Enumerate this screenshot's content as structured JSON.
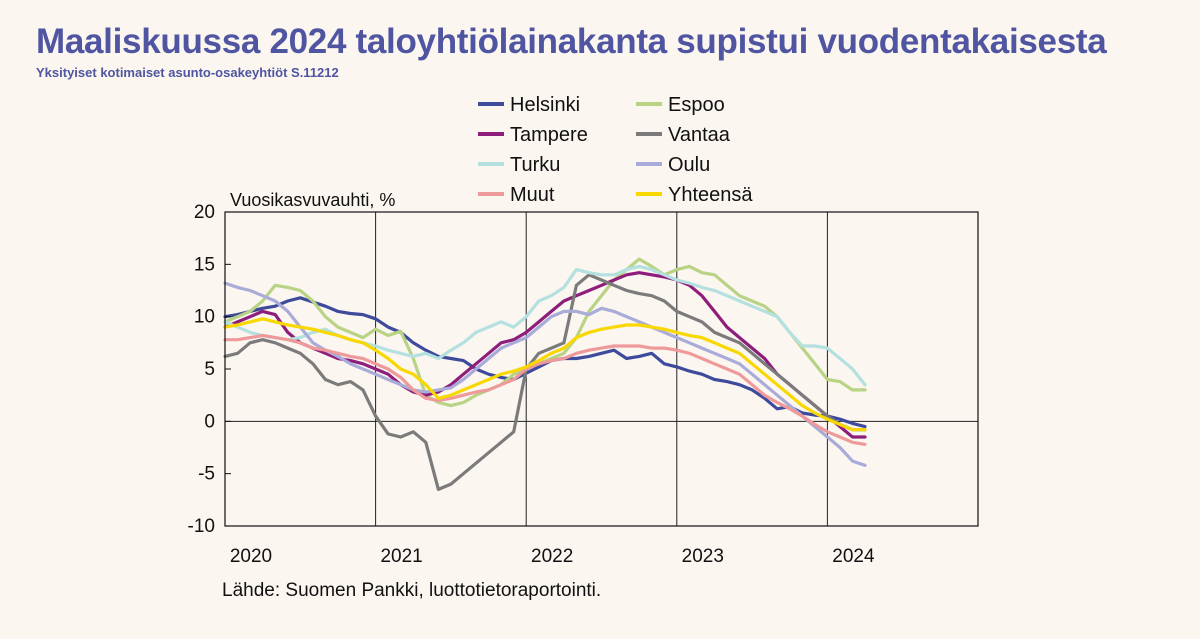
{
  "page": {
    "title": "Maaliskuussa 2024 taloyhtiölainakanta supistui vuodentakaisesta",
    "subtitle": "Yksityiset kotimaiset asunto-osakeyhtiöt S.11212",
    "source": "Lähde: Suomen Pankki, luottotietoraportointi."
  },
  "chart_data": {
    "type": "line",
    "ylabel": "Vuosikasvuvauhti, %",
    "xlabel": "",
    "ylim": [
      -10,
      20
    ],
    "yticks": [
      20,
      15,
      10,
      5,
      0,
      -5,
      -10
    ],
    "xlim": [
      0,
      60
    ],
    "xticks": [
      {
        "value": 0,
        "label": "2020"
      },
      {
        "value": 12,
        "label": "2021"
      },
      {
        "value": 24,
        "label": "2022"
      },
      {
        "value": 36,
        "label": "2023"
      },
      {
        "value": 48,
        "label": "2024"
      }
    ],
    "x_unit": "months since Jan 2020",
    "grid": "x-major",
    "legend_position": "top",
    "series": [
      {
        "name": "Helsinki",
        "color": "#3e4a9c",
        "values": [
          10.0,
          10.2,
          10.5,
          10.8,
          11.0,
          11.5,
          11.8,
          11.4,
          11.0,
          10.5,
          10.3,
          10.2,
          9.8,
          9.0,
          8.5,
          7.5,
          6.8,
          6.2,
          6.0,
          5.8,
          5.0,
          4.5,
          4.2,
          4.0,
          4.6,
          5.2,
          5.8,
          6.0,
          6.0,
          6.2,
          6.5,
          6.8,
          6.0,
          6.2,
          6.5,
          5.5,
          5.2,
          4.8,
          4.5,
          4.0,
          3.8,
          3.5,
          3.0,
          2.2,
          1.2,
          1.4,
          0.8,
          0.6,
          0.5,
          0.2,
          -0.2,
          -0.5
        ]
      },
      {
        "name": "Espoo",
        "color": "#b8d383",
        "values": [
          9.5,
          10.0,
          10.5,
          11.5,
          13.0,
          12.8,
          12.5,
          11.5,
          10.0,
          9.0,
          8.5,
          8.0,
          8.8,
          8.2,
          8.6,
          6.0,
          2.5,
          1.8,
          1.5,
          1.8,
          2.5,
          3.0,
          3.5,
          4.5,
          5.0,
          5.5,
          6.0,
          6.5,
          8.0,
          10.5,
          12.0,
          13.5,
          14.5,
          15.5,
          14.8,
          14.0,
          14.5,
          14.8,
          14.2,
          14.0,
          13.0,
          12.0,
          11.5,
          11.0,
          10.0,
          8.5,
          7.0,
          5.5,
          4.0,
          3.8,
          3.0,
          3.0
        ]
      },
      {
        "name": "Tampere",
        "color": "#8e1e7c",
        "values": [
          9.0,
          9.5,
          10.0,
          10.5,
          10.2,
          8.5,
          7.5,
          7.0,
          6.5,
          6.0,
          5.8,
          5.5,
          5.0,
          4.5,
          3.5,
          2.8,
          2.5,
          2.8,
          3.5,
          4.5,
          5.5,
          6.5,
          7.5,
          7.8,
          8.5,
          9.5,
          10.5,
          11.5,
          12.0,
          12.5,
          13.0,
          13.5,
          14.0,
          14.2,
          14.0,
          13.8,
          13.5,
          13.0,
          12.0,
          10.5,
          9.0,
          8.0,
          7.0,
          6.0,
          4.5,
          3.5,
          2.5,
          1.5,
          0.5,
          -0.5,
          -1.5,
          -1.5
        ]
      },
      {
        "name": "Vantaa",
        "color": "#7b7b7b",
        "values": [
          6.2,
          6.5,
          7.5,
          7.8,
          7.5,
          7.0,
          6.5,
          5.5,
          4.0,
          3.5,
          3.8,
          3.0,
          0.5,
          -1.2,
          -1.5,
          -1.0,
          -2.0,
          -6.5,
          -6.0,
          -5.0,
          -4.0,
          -3.0,
          -2.0,
          -1.0,
          5.0,
          6.5,
          7.0,
          7.5,
          13.0,
          14.0,
          13.5,
          13.0,
          12.5,
          12.2,
          12.0,
          11.5,
          10.5,
          10.0,
          9.5,
          8.5,
          8.0,
          7.5,
          6.5,
          5.5,
          4.5,
          3.5,
          2.5,
          1.5,
          0.5,
          -0.3,
          -0.8,
          -0.8
        ]
      },
      {
        "name": "Turku",
        "color": "#b5e0e0",
        "values": [
          9.5,
          9.0,
          8.5,
          8.2,
          8.0,
          7.8,
          8.0,
          8.5,
          8.8,
          8.2,
          7.8,
          7.5,
          7.2,
          6.8,
          6.5,
          6.2,
          6.5,
          6.0,
          6.8,
          7.5,
          8.5,
          9.0,
          9.5,
          9.0,
          10.0,
          11.5,
          12.0,
          12.8,
          14.5,
          14.2,
          14.0,
          14.0,
          14.5,
          14.8,
          14.5,
          14.0,
          13.5,
          13.2,
          12.8,
          12.5,
          12.0,
          11.5,
          11.0,
          10.5,
          10.0,
          8.5,
          7.2,
          7.2,
          7.0,
          6.0,
          5.0,
          3.5
        ]
      },
      {
        "name": "Oulu",
        "color": "#a9abd8",
        "values": [
          13.2,
          12.8,
          12.5,
          12.0,
          11.5,
          10.5,
          9.0,
          7.5,
          6.8,
          6.2,
          5.5,
          5.0,
          4.5,
          4.0,
          3.5,
          3.0,
          2.8,
          3.0,
          3.2,
          4.0,
          5.0,
          6.0,
          7.0,
          7.5,
          8.0,
          9.0,
          10.0,
          10.5,
          10.5,
          10.2,
          10.8,
          10.5,
          10.0,
          9.5,
          9.0,
          8.5,
          8.0,
          7.5,
          7.0,
          6.5,
          6.0,
          5.5,
          4.5,
          3.5,
          2.5,
          1.5,
          0.5,
          -0.5,
          -1.5,
          -2.5,
          -3.8,
          -4.2
        ]
      },
      {
        "name": "Muut",
        "color": "#ee9a9a",
        "values": [
          7.8,
          7.8,
          8.0,
          8.2,
          8.0,
          7.8,
          7.5,
          7.0,
          6.8,
          6.5,
          6.2,
          6.0,
          5.5,
          5.0,
          4.2,
          3.0,
          2.2,
          2.0,
          2.2,
          2.5,
          2.8,
          3.0,
          3.5,
          4.0,
          5.0,
          5.5,
          5.8,
          6.0,
          6.5,
          6.8,
          7.0,
          7.2,
          7.2,
          7.2,
          7.0,
          7.0,
          6.8,
          6.5,
          6.0,
          5.5,
          5.0,
          4.5,
          3.5,
          2.5,
          1.8,
          1.2,
          0.5,
          -0.3,
          -1.0,
          -1.5,
          -2.0,
          -2.2
        ]
      },
      {
        "name": "Yhteensä",
        "color": "#f8d800",
        "values": [
          9.0,
          9.2,
          9.5,
          9.8,
          9.5,
          9.2,
          9.0,
          8.8,
          8.5,
          8.2,
          7.8,
          7.5,
          6.8,
          6.0,
          5.0,
          4.5,
          3.5,
          2.2,
          2.5,
          3.0,
          3.5,
          4.0,
          4.5,
          4.8,
          5.2,
          5.8,
          6.5,
          7.0,
          8.0,
          8.5,
          8.8,
          9.0,
          9.2,
          9.2,
          9.0,
          8.8,
          8.5,
          8.2,
          8.0,
          7.5,
          7.0,
          6.5,
          5.5,
          4.5,
          3.5,
          2.5,
          1.5,
          0.8,
          0.2,
          -0.3,
          -0.8,
          -0.8
        ]
      }
    ]
  }
}
